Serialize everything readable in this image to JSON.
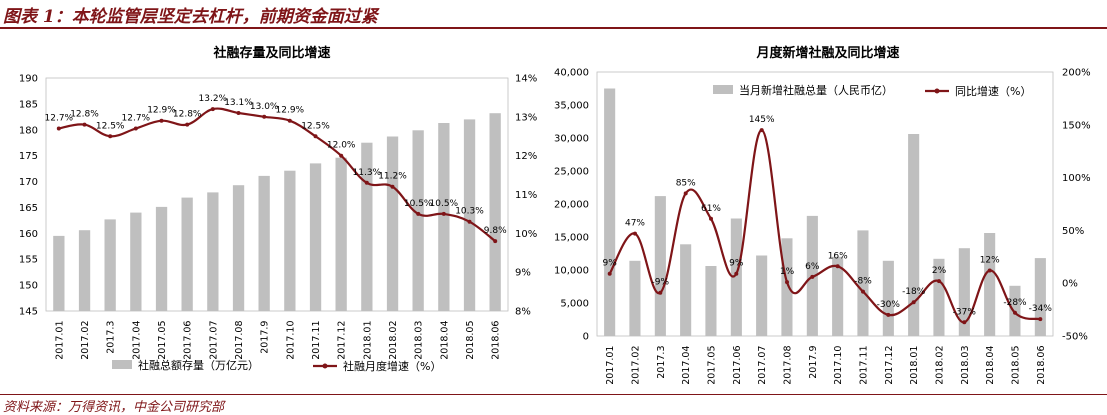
{
  "figure": {
    "title": "图表 1：本轮监管层坚定去杠杆，前期资金面过紧",
    "source": "资料来源：万得资讯，中金公司研究部"
  },
  "colors": {
    "bar": "#bfbfbf",
    "line": "#7f1518",
    "accent": "#7f1518"
  },
  "chart_data": [
    {
      "type": "bar",
      "title": "社融存量及同比增速",
      "categories": [
        "2017.01",
        "2017.02",
        "2017.3",
        "2017.04",
        "2017.05",
        "2017.06",
        "2017.07",
        "2017.08",
        "2017.9",
        "2017.10",
        "2017.11",
        "2017.12",
        "2018.01",
        "2018.02",
        "2018.03",
        "2018.04",
        "2018.05",
        "2018.06"
      ],
      "series": [
        {
          "name": "社融总额存量（万亿元）",
          "type": "bar",
          "axis": "left",
          "values": [
            159.5,
            160.6,
            162.7,
            164.0,
            165.1,
            166.9,
            167.9,
            169.3,
            171.1,
            172.1,
            173.5,
            174.6,
            177.5,
            178.7,
            179.9,
            181.3,
            182.0,
            183.2
          ]
        },
        {
          "name": "社融月度增速（%）",
          "type": "line",
          "axis": "right",
          "values": [
            12.7,
            12.8,
            12.5,
            12.7,
            12.9,
            12.8,
            13.2,
            13.1,
            13.0,
            12.9,
            12.5,
            12.0,
            11.3,
            11.2,
            10.5,
            10.5,
            10.3,
            9.8
          ],
          "labels": [
            "12.7%",
            "12.8%",
            "12.5%",
            "12.7%",
            "12.9%",
            "12.8%",
            "13.2%",
            "13.1%",
            "13.0%",
            "12.9%",
            "12.5%",
            "12.0%",
            "11.3%",
            "11.2%",
            "10.5%",
            "10.5%",
            "10.3%",
            "9.8%"
          ]
        }
      ],
      "ylim_left": [
        145,
        190
      ],
      "yticks_left": [
        "145",
        "150",
        "155",
        "160",
        "165",
        "170",
        "175",
        "180",
        "185",
        "190"
      ],
      "ylim_right": [
        8,
        14
      ],
      "yticks_right": [
        "8%",
        "9%",
        "10%",
        "11%",
        "12%",
        "13%",
        "14%"
      ],
      "legend_position": "bottom"
    },
    {
      "type": "bar",
      "title": "月度新增社融及同比增速",
      "categories": [
        "2017.01",
        "2017.02",
        "2017.3",
        "2017.04",
        "2017.05",
        "2017.06",
        "2017.07",
        "2017.08",
        "2017.9",
        "2017.10",
        "2017.11",
        "2017.12",
        "2018.01",
        "2018.02",
        "2018.03",
        "2018.04",
        "2018.05",
        "2018.06"
      ],
      "series": [
        {
          "name": "当月新增社融总量（人民币亿）",
          "type": "bar",
          "axis": "left",
          "values": [
            37500,
            11400,
            21200,
            13900,
            10600,
            17800,
            12200,
            14800,
            18200,
            12000,
            16000,
            11400,
            30600,
            11700,
            13300,
            15600,
            7600,
            11800
          ]
        },
        {
          "name": "同比增速（%）",
          "type": "line",
          "axis": "right",
          "values": [
            9,
            47,
            -9,
            85,
            61,
            9,
            145,
            1,
            6,
            16,
            -8,
            -30,
            -18,
            2,
            -37,
            12,
            -28,
            -34
          ],
          "labels": [
            "9%",
            "47%",
            "-9%",
            "85%",
            "61%",
            "9%",
            "145%",
            "1%",
            "6%",
            "16%",
            "-8%",
            "-30%",
            "-18%",
            "2%",
            "-37%",
            "12%",
            "-28%",
            "-34%"
          ]
        }
      ],
      "ylim_left": [
        0,
        40000
      ],
      "yticks_left": [
        "0",
        "5,000",
        "10,000",
        "15,000",
        "20,000",
        "25,000",
        "30,000",
        "35,000",
        "40,000"
      ],
      "ylim_right": [
        -50,
        200
      ],
      "yticks_right": [
        "-50%",
        "0%",
        "50%",
        "100%",
        "150%",
        "200%"
      ],
      "legend_position": "top"
    }
  ]
}
